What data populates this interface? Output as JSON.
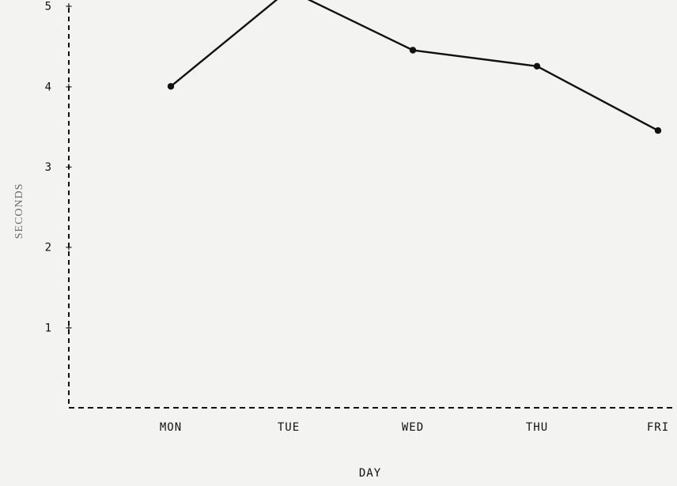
{
  "chart_data": {
    "type": "line",
    "categories": [
      "MON",
      "TUE",
      "WED",
      "THU",
      "FRI"
    ],
    "series": [
      {
        "values": [
          4.0,
          5.2,
          4.45,
          4.25,
          3.45
        ]
      }
    ],
    "xlabel": "DAY",
    "ylabel": "SECONDS",
    "ylim": [
      0,
      5.3
    ],
    "yticks": [
      "1",
      "2",
      "3",
      "4",
      "5"
    ],
    "grid": false,
    "colors": {
      "line": "#111111",
      "axis": "#111111",
      "background": "#f3f3f1"
    }
  }
}
